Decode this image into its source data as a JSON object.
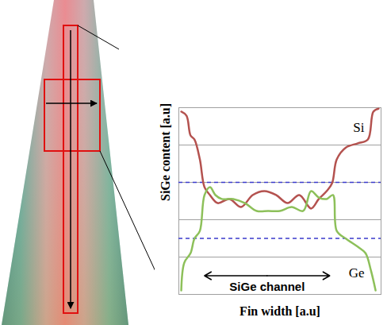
{
  "chart_data": {
    "type": "line",
    "x_label": "Fin width [a.u]",
    "y_label": "SiGe content [a.u]",
    "xlim": [
      0,
      100
    ],
    "ylim": [
      0,
      100
    ],
    "yticks": [
      0,
      20,
      40,
      60,
      80,
      100
    ],
    "grid": true,
    "tick_labels": false,
    "series": [
      {
        "name": "Si",
        "color": "#b4524f",
        "x": [
          1.2,
          3.8,
          5.8,
          7.7,
          10.4,
          12.7,
          15.4,
          19.2,
          25,
          30.8,
          36.5,
          42.3,
          48.1,
          53.8,
          59.6,
          65.4,
          69.2,
          73.1,
          75.8,
          78.1,
          82.7,
          88.5,
          93.5,
          96.2,
          98.8
        ],
        "values": [
          97.9,
          95.7,
          85.1,
          83,
          72.3,
          57.4,
          53.2,
          48.9,
          51.1,
          46.8,
          53.2,
          55.3,
          53.2,
          48.9,
          53.2,
          46,
          51.1,
          55.3,
          59.6,
          72.3,
          78.7,
          80.9,
          83,
          97.9,
          99.5
        ]
      },
      {
        "name": "Ge",
        "color": "#8dc05a",
        "x": [
          1.2,
          2.7,
          5.8,
          7.7,
          10.4,
          12.7,
          15.4,
          18.1,
          21.2,
          26.9,
          32.7,
          38.5,
          44.2,
          50,
          55.8,
          61.5,
          65.4,
          69.2,
          73.1,
          76.2,
          78.1,
          82.7,
          88.5,
          92.3,
          95,
          97.3
        ],
        "values": [
          2.1,
          17,
          22.1,
          29.8,
          34,
          53.2,
          57.4,
          53.2,
          51.1,
          51.1,
          48.9,
          44.7,
          44.7,
          44.7,
          46.8,
          44.7,
          55.3,
          51.9,
          51.1,
          53.2,
          34,
          29.8,
          25.5,
          22.1,
          12.8,
          2.1
        ]
      }
    ],
    "reference_lines": {
      "values": [
        60,
        30
      ],
      "color": "#3a3acc",
      "line_style": "dashed"
    },
    "annotations": [
      {
        "text": "SiGe channel",
        "x1": 12.7,
        "x2": 74.6,
        "y": 10
      }
    ]
  }
}
